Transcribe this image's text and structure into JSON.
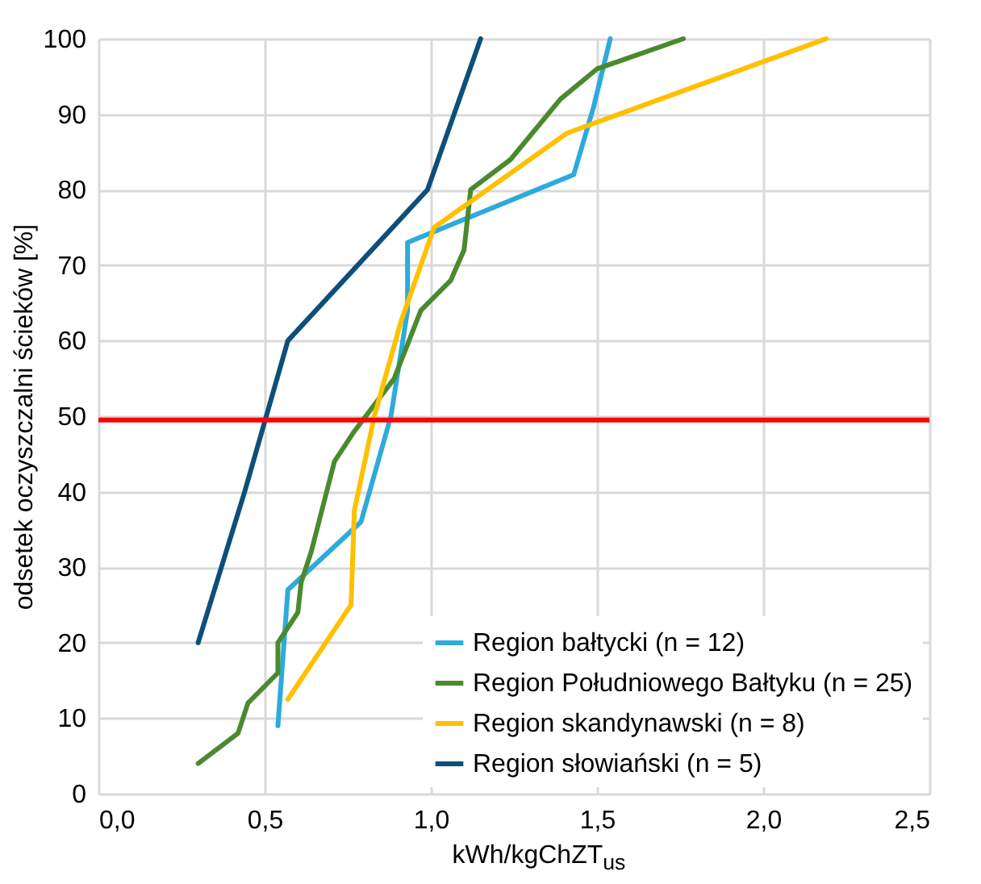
{
  "chart_data": {
    "type": "line",
    "xlabel": "kWh/kgChZT$_{us}$",
    "ylabel": "odsetek oczyszczalni ścieków [%]",
    "xlim": [
      0,
      2.5
    ],
    "xticks": [
      {
        "value": 0,
        "label": "0,0"
      },
      {
        "value": 0.5,
        "label": "0,5"
      },
      {
        "value": 1,
        "label": "1,0"
      },
      {
        "value": 1.5,
        "label": "1,5"
      },
      {
        "value": 2,
        "label": "2,0"
      },
      {
        "value": 2.5,
        "label": "2,5"
      }
    ],
    "ylim": [
      0,
      100
    ],
    "yticks": [
      0,
      10,
      20,
      30,
      40,
      50,
      60,
      70,
      80,
      90,
      100
    ],
    "grid": true,
    "legend": "bottom right",
    "series": [
      {
        "name": "Region bałtycki (n = 12)",
        "color": "#2eaadc",
        "x": [
          0.54,
          0.57,
          0.79,
          0.88,
          0.93,
          0.93,
          1.43,
          1.49,
          1.54
        ],
        "values": [
          9,
          27,
          36,
          50,
          64,
          73,
          82,
          91,
          100
        ]
      },
      {
        "name": "Region Południowego Bałtyku (n = 25)",
        "color": "#4a8a2e",
        "x": [
          0.3,
          0.42,
          0.45,
          0.54,
          0.54,
          0.6,
          0.61,
          0.64,
          0.71,
          0.77,
          0.89,
          0.97,
          1.06,
          1.1,
          1.12,
          1.24,
          1.39,
          1.5,
          1.76
        ],
        "values": [
          4,
          8,
          12,
          16,
          20,
          24,
          28,
          32,
          44,
          48,
          55,
          64,
          68,
          72,
          80,
          84,
          92,
          96,
          100
        ]
      },
      {
        "name": "Region skandynawski (n = 8)",
        "color": "#ffc000",
        "x": [
          0.57,
          0.76,
          0.77,
          0.83,
          0.91,
          1.01,
          1.41,
          2.19
        ],
        "values": [
          12.5,
          25,
          37.5,
          50,
          62.5,
          75,
          87.5,
          100
        ]
      },
      {
        "name": "Region słowiański (n = 5)",
        "color": "#0d4f7a",
        "x": [
          0.3,
          0.44,
          0.57,
          0.99,
          1.15
        ],
        "values": [
          20,
          40,
          60,
          80,
          100
        ]
      }
    ],
    "ref_lines": [
      {
        "axis": "y",
        "value": 49.5,
        "color": "#ff0000"
      }
    ]
  }
}
